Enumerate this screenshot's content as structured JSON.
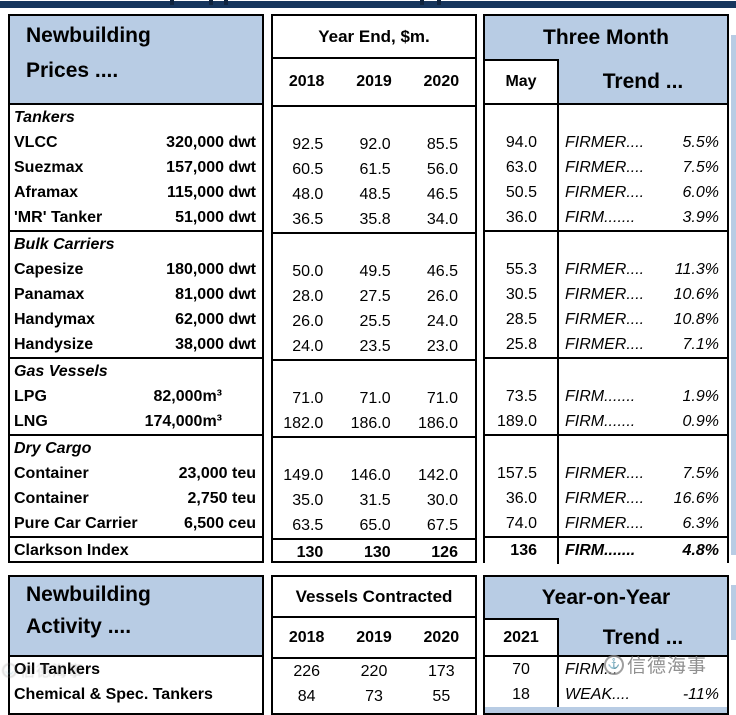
{
  "prices": {
    "header": {
      "title_line1": "Newbuilding",
      "title_line2": "Prices ....",
      "period_header": "Year End, $m.",
      "years": [
        "2018",
        "2019",
        "2020"
      ],
      "month_header": "Three Month",
      "month_col": "May",
      "trend_header": "Trend ..."
    },
    "sections": [
      {
        "label": "Tankers",
        "rows": [
          {
            "name": "VLCC",
            "size": "320,000 dwt",
            "y2018": "92.5",
            "y2019": "92.0",
            "y2020": "85.5",
            "may": "94.0",
            "trend": "FIRMER....",
            "pct": "5.5%"
          },
          {
            "name": "Suezmax",
            "size": "157,000 dwt",
            "y2018": "60.5",
            "y2019": "61.5",
            "y2020": "56.0",
            "may": "63.0",
            "trend": "FIRMER....",
            "pct": "7.5%"
          },
          {
            "name": "Aframax",
            "size": "115,000 dwt",
            "y2018": "48.0",
            "y2019": "48.5",
            "y2020": "46.5",
            "may": "50.5",
            "trend": "FIRMER....",
            "pct": "6.0%"
          },
          {
            "name": "'MR' Tanker",
            "size": "51,000 dwt",
            "y2018": "36.5",
            "y2019": "35.8",
            "y2020": "34.0",
            "may": "36.0",
            "trend": "FIRM.......",
            "pct": "3.9%"
          }
        ]
      },
      {
        "label": "Bulk Carriers",
        "rows": [
          {
            "name": "Capesize",
            "size": "180,000 dwt",
            "y2018": "50.0",
            "y2019": "49.5",
            "y2020": "46.5",
            "may": "55.3",
            "trend": "FIRMER....",
            "pct": "11.3%"
          },
          {
            "name": "Panamax",
            "size": "81,000 dwt",
            "y2018": "28.0",
            "y2019": "27.5",
            "y2020": "26.0",
            "may": "30.5",
            "trend": "FIRMER....",
            "pct": "10.6%"
          },
          {
            "name": "Handymax",
            "size": "62,000 dwt",
            "y2018": "26.0",
            "y2019": "25.5",
            "y2020": "24.0",
            "may": "28.5",
            "trend": "FIRMER....",
            "pct": "10.8%"
          },
          {
            "name": "Handysize",
            "size": "38,000 dwt",
            "y2018": "24.0",
            "y2019": "23.5",
            "y2020": "23.0",
            "may": "25.8",
            "trend": "FIRMER....",
            "pct": "7.1%"
          }
        ]
      },
      {
        "label": "Gas Vessels",
        "rows": [
          {
            "name": "LPG",
            "size": "82,000m³",
            "y2018": "71.0",
            "y2019": "71.0",
            "y2020": "71.0",
            "may": "73.5",
            "trend": "FIRM.......",
            "pct": "1.9%"
          },
          {
            "name": "LNG",
            "size": "174,000m³",
            "y2018": "182.0",
            "y2019": "186.0",
            "y2020": "186.0",
            "may": "189.0",
            "trend": "FIRM.......",
            "pct": "0.9%"
          }
        ]
      },
      {
        "label": "Dry Cargo",
        "rows": [
          {
            "name": "Container",
            "size": "23,000 teu",
            "y2018": "149.0",
            "y2019": "146.0",
            "y2020": "142.0",
            "may": "157.5",
            "trend": "FIRMER....",
            "pct": "7.5%"
          },
          {
            "name": "Container",
            "size": "2,750 teu",
            "y2018": "35.0",
            "y2019": "31.5",
            "y2020": "30.0",
            "may": "36.0",
            "trend": "FIRMER....",
            "pct": "16.6%"
          },
          {
            "name": "Pure Car Carrier",
            "size": "6,500 ceu",
            "y2018": "63.5",
            "y2019": "65.0",
            "y2020": "67.5",
            "may": "74.0",
            "trend": "FIRMER....",
            "pct": "6.3%"
          }
        ]
      }
    ],
    "footer": {
      "label": "Clarkson Index",
      "y2018": "130",
      "y2019": "130",
      "y2020": "126",
      "may": "136",
      "trend": "FIRM.......",
      "pct": "4.8%"
    }
  },
  "activity": {
    "header": {
      "title_line1": "Newbuilding",
      "title_line2": "Activity ....",
      "period_header": "Vessels Contracted",
      "years": [
        "2018",
        "2019",
        "2020"
      ],
      "year_col": "2021",
      "yoy_header": "Year-on-Year",
      "trend_header": "Trend ..."
    },
    "rows": [
      {
        "name": "Oil Tankers",
        "y2018": "226",
        "y2019": "220",
        "y2020": "173",
        "cur": "70",
        "trend": "FIRM...",
        "pct": ""
      },
      {
        "name": "Chemical & Spec. Tankers",
        "y2018": "84",
        "y2019": "73",
        "y2020": "55",
        "cur": "18",
        "trend": "WEAK....",
        "pct": "-11%"
      }
    ]
  },
  "watermark": {
    "text": "信德海事",
    "logo_glyph": "⚓"
  },
  "colors": {
    "header_blue": "#b8cce4",
    "top_bar_navy": "#17365d"
  }
}
